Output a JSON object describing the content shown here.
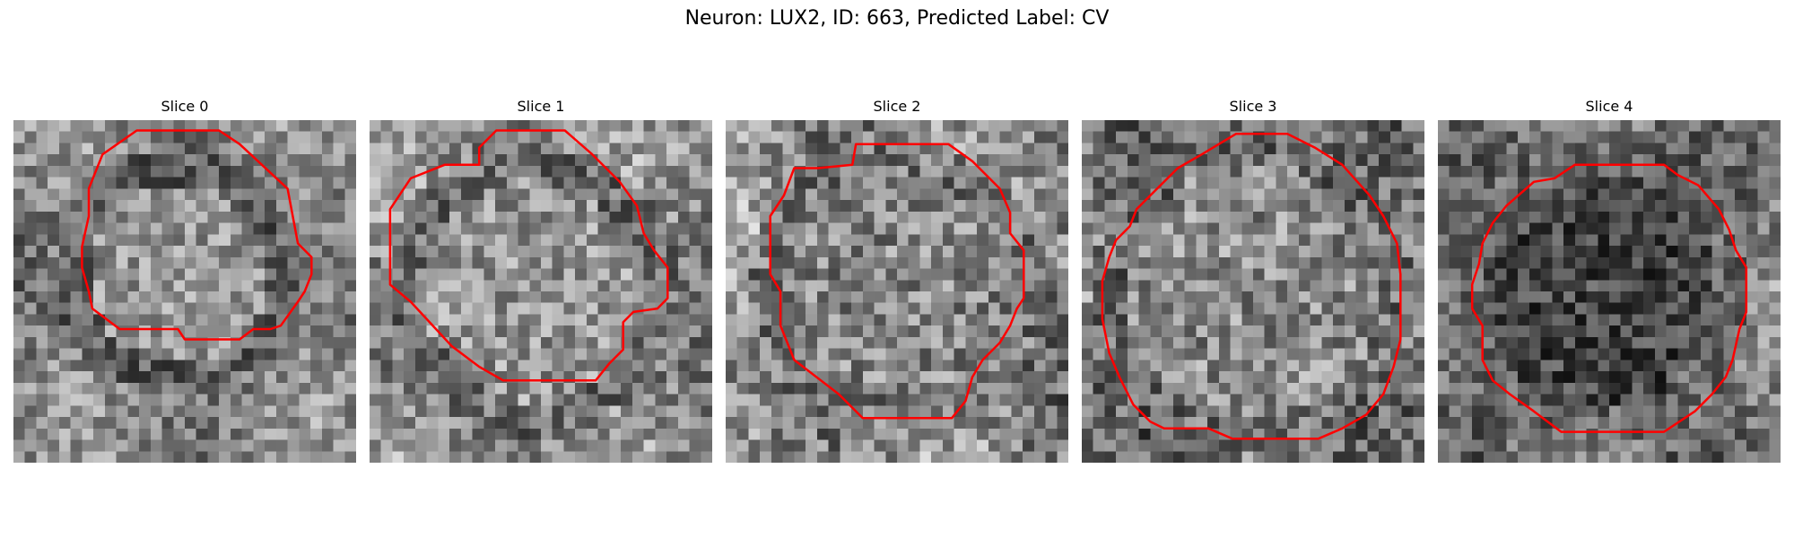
{
  "figure": {
    "title": "Neuron: LUX2, ID: 663, Predicted Label: CV"
  },
  "panels": [
    {
      "label": "Slice 0",
      "contour_color": "#ff0000"
    },
    {
      "label": "Slice 1",
      "contour_color": "#ff0000"
    },
    {
      "label": "Slice 2",
      "contour_color": "#ff0000"
    },
    {
      "label": "Slice 3",
      "contour_color": "#ff0000"
    },
    {
      "label": "Slice 4",
      "contour_color": "#ff0000"
    }
  ]
}
